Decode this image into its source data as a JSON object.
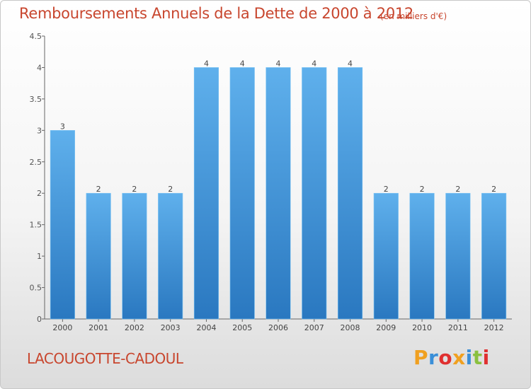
{
  "header": {
    "title": "Remboursements Annuels de la Dette de 2000 à 2012",
    "unit": "(en milliers d'€)"
  },
  "footer": {
    "commune": "LACOUGOTTE-CADOUL",
    "logo": "Proxiti",
    "logo_colors": [
      "#f0a020",
      "#3a8fd8",
      "#e03030",
      "#f0a020",
      "#3a8fd8",
      "#8ac040",
      "#e03030"
    ]
  },
  "colors": {
    "bar_light": "#5fb0ec",
    "bar_dark": "#2a78c0",
    "text": "#c8462e"
  },
  "chart_data": {
    "type": "bar",
    "categories": [
      "2000",
      "2001",
      "2002",
      "2003",
      "2004",
      "2005",
      "2006",
      "2007",
      "2008",
      "2009",
      "2010",
      "2011",
      "2012"
    ],
    "values": [
      3,
      2,
      2,
      2,
      4,
      4,
      4,
      4,
      4,
      2,
      2,
      2,
      2
    ],
    "data_labels": [
      "3",
      "2",
      "2",
      "2",
      "4",
      "4",
      "4",
      "4",
      "4",
      "2",
      "2",
      "2",
      "2"
    ],
    "title": "Remboursements Annuels de la Dette de 2000 à 2012",
    "ylim": [
      0,
      4.5
    ],
    "y_ticks": [
      0,
      0.5,
      1,
      1.5,
      2,
      2.5,
      3,
      3.5,
      4,
      4.5
    ],
    "y_tick_labels": [
      "0",
      "0.5",
      "1",
      "1.5",
      "2",
      "2.5",
      "3",
      "3.5",
      "4",
      "4.5"
    ],
    "grid": false
  }
}
